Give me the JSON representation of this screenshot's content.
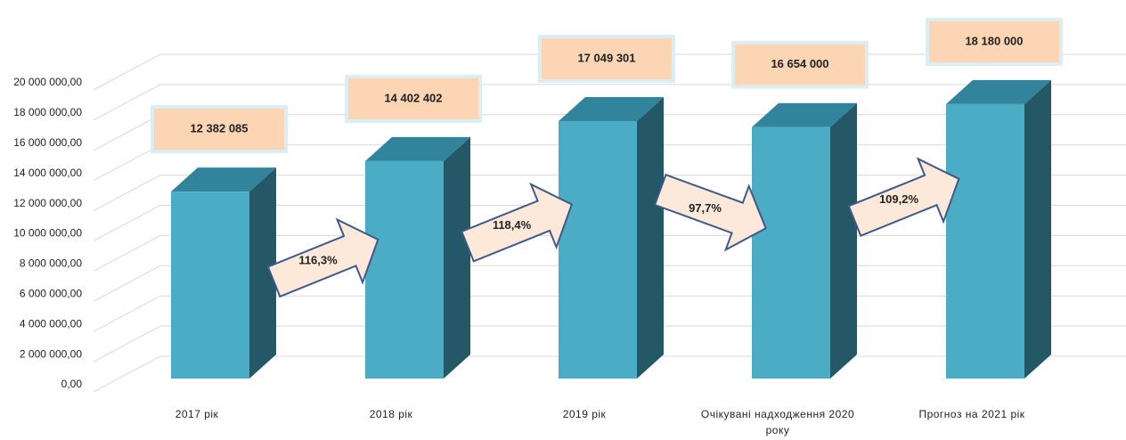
{
  "chart_data": {
    "type": "bar3d",
    "categories": [
      "2017 рік",
      "2018 рік",
      "2019 рік",
      "Очікувані надходження 2020 року",
      "Прогноз на 2021 рік"
    ],
    "values": [
      12382085,
      14402402,
      17049301,
      16654000,
      18180000
    ],
    "value_labels": [
      "12 382 085",
      "14 402 402",
      "17 049 301",
      "16 654 000",
      "18 180 000"
    ],
    "color": "#4bacc6",
    "ylim": [
      0,
      20000000
    ],
    "yticks": [
      {
        "value": 0,
        "label": "0,00"
      },
      {
        "value": 2000000,
        "label": "2 000 000,00"
      },
      {
        "value": 4000000,
        "label": "4 000 000,00"
      },
      {
        "value": 6000000,
        "label": "6 000 000,00"
      },
      {
        "value": 8000000,
        "label": "8 000 000,00"
      },
      {
        "value": 10000000,
        "label": "10 000 000,00"
      },
      {
        "value": 12000000,
        "label": "12 000 000,00"
      },
      {
        "value": 14000000,
        "label": "14 000 000,00"
      },
      {
        "value": 16000000,
        "label": "16 000 000,00"
      },
      {
        "value": 18000000,
        "label": "18 000 000,00"
      },
      {
        "value": 20000000,
        "label": "20 000 000,00"
      }
    ],
    "annotations": [
      "116,3%",
      "118,4%",
      "97,7%",
      "109,2%"
    ],
    "grid": true
  }
}
